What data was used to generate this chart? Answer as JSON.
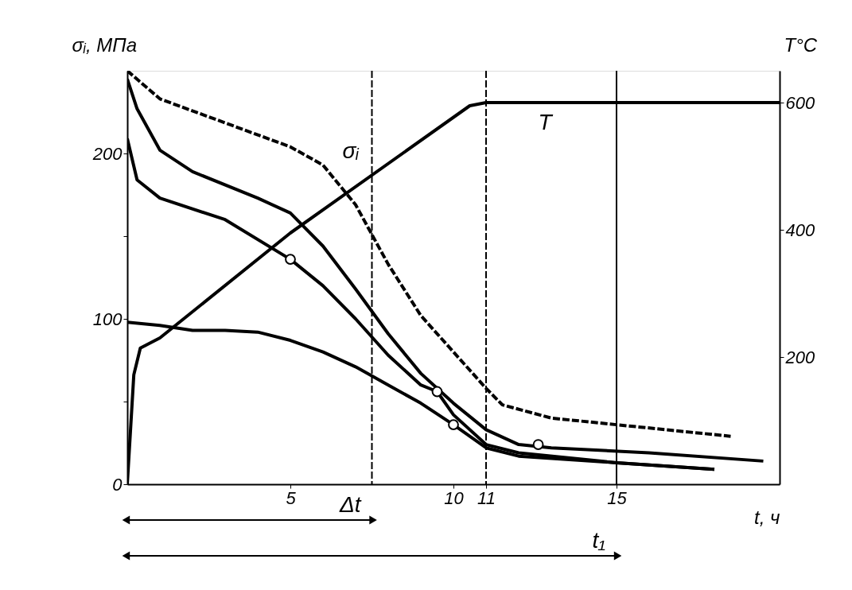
{
  "chart_data": {
    "type": "line",
    "xlabel": "t, ч",
    "ylabel": "σᵢ, МПа",
    "y2label": "T°C",
    "xlim": [
      0,
      20
    ],
    "xticks": [
      5,
      10,
      11,
      15
    ],
    "ylim": [
      0,
      250
    ],
    "yticks": [
      0,
      {
        "value": 50,
        "label": null
      },
      100,
      {
        "value": 150,
        "label": null
      },
      200
    ],
    "y2lim": [
      0,
      650
    ],
    "y2ticks": [
      200,
      400,
      600
    ],
    "grid": false,
    "series": [
      {
        "color": "#000000",
        "line_style": "dashed",
        "x": [
          0,
          1,
          5,
          6,
          7,
          8,
          9,
          10,
          11,
          11.5,
          13,
          15,
          18.5
        ],
        "values": [
          250,
          233,
          204,
          193,
          169,
          133,
          102,
          80,
          58,
          48,
          40,
          36,
          29
        ]
      },
      {
        "color": "#000000",
        "line_style": "solid",
        "x": [
          0,
          0.3,
          1,
          2,
          4,
          5,
          6,
          7,
          8,
          9,
          10,
          11,
          12,
          13,
          16,
          19.5
        ],
        "values": [
          245,
          227,
          202,
          189,
          173,
          164,
          144,
          118,
          91,
          67,
          49,
          33,
          24,
          22,
          19,
          14
        ]
      },
      {
        "color": "#000000",
        "line_style": "solid",
        "x": [
          0,
          0.3,
          1,
          3,
          5,
          6,
          7,
          8,
          9,
          9.5,
          10,
          11,
          12,
          15,
          18
        ],
        "values": [
          209,
          184,
          173,
          160,
          136,
          120,
          100,
          78,
          60,
          56,
          42,
          24,
          19,
          13,
          9
        ]
      },
      {
        "color": "#000000",
        "line_style": "solid",
        "x": [
          0,
          1,
          2,
          3,
          4,
          5,
          6,
          7,
          8,
          9,
          10,
          11,
          12,
          15,
          18
        ],
        "values": [
          98,
          96,
          93,
          93,
          92,
          87,
          80,
          71,
          60,
          49,
          36,
          22,
          17,
          13,
          9
        ]
      },
      {
        "color": "#000000",
        "line_style": "solid",
        "axis": "y2",
        "x": [
          0,
          0.2,
          0.4,
          1,
          5,
          10.5,
          11,
          20
        ],
        "values": [
          0,
          172,
          214,
          230,
          395,
          595,
          600,
          600
        ]
      },
      {
        "type": "scatter",
        "marker": "circle",
        "color": "#000000",
        "x": [
          5,
          9.5,
          10,
          12.6
        ],
        "values": [
          136,
          56,
          36,
          24
        ]
      }
    ],
    "ref_lines": [
      {
        "axis": "x",
        "value": 7.5,
        "label": "Δt",
        "line_style": "dashed"
      },
      {
        "axis": "x",
        "value": 11,
        "line_style": "dashed"
      },
      {
        "axis": "x",
        "value": 15,
        "label": "t₁",
        "line_style": "solid"
      }
    ],
    "annotations": [
      "σᵢ",
      "T"
    ]
  }
}
